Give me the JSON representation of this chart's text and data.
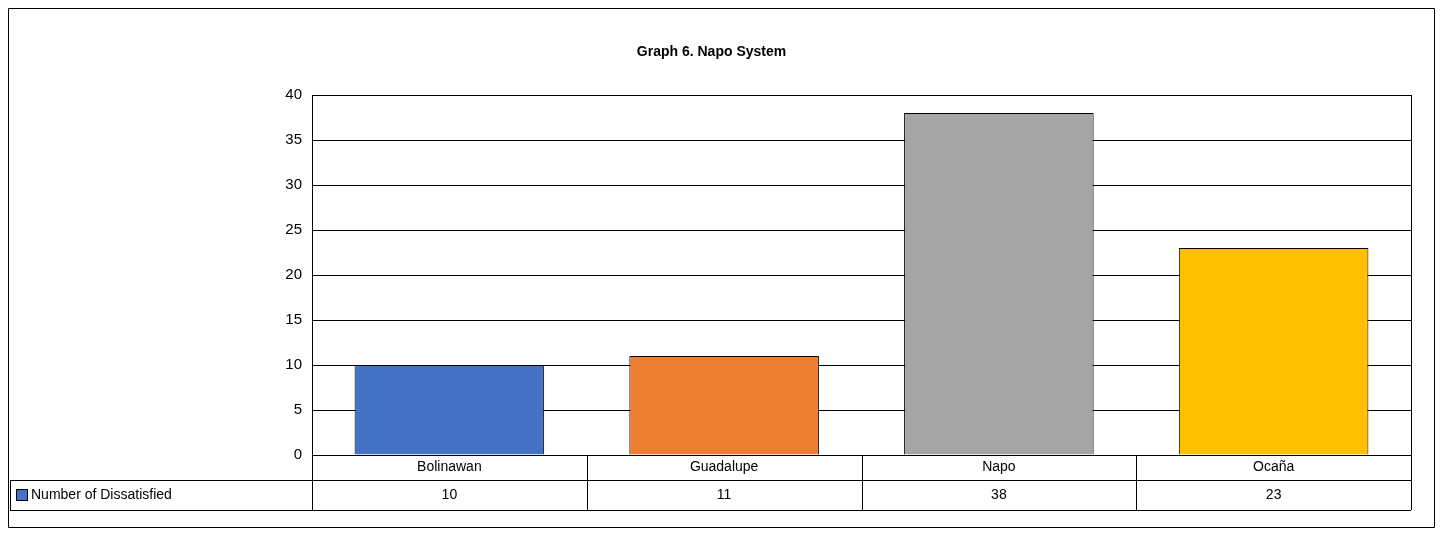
{
  "chart_data": {
    "type": "bar",
    "title": "Graph 6. Napo System",
    "categories": [
      "Bolinawan",
      "Guadalupe",
      "Napo",
      "Ocaña"
    ],
    "series": [
      {
        "name": "Number of Dissatisfied",
        "color": "#4472c4",
        "colors": [
          "#4472c4",
          "#ed7d31",
          "#a5a5a5",
          "#ffc000"
        ],
        "values": [
          10,
          11,
          38,
          23
        ]
      }
    ],
    "ylim": [
      0,
      40
    ],
    "yticks": [
      0,
      5,
      10,
      15,
      20,
      25,
      30,
      35,
      40
    ],
    "grid": "y",
    "legend": "bottom left",
    "data_labels": true
  }
}
